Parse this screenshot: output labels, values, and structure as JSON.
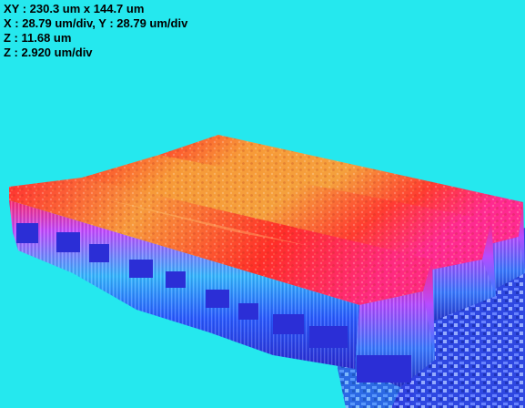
{
  "readout": {
    "xy": "XY : 230.3 um x 144.7 um",
    "xy_div": "X : 28.79 um/div, Y : 28.79 um/div",
    "z": "Z : 11.68 um",
    "z_div": "Z : 2.920 um/div"
  },
  "colors": {
    "background": "#25e8ee",
    "ridge_top": "#f6a33a",
    "ridge_top_front": "#ff2a1f",
    "ridge_top_back": "#ff2f8a",
    "wall_top": "#ff2f6a",
    "wall_mid": "#20a8ff",
    "wall_base": "#2a2bd8",
    "base_noise": "#5a6aff"
  },
  "surface": {
    "type": "3d-profilometer-surface",
    "ridge_count": 3
  }
}
